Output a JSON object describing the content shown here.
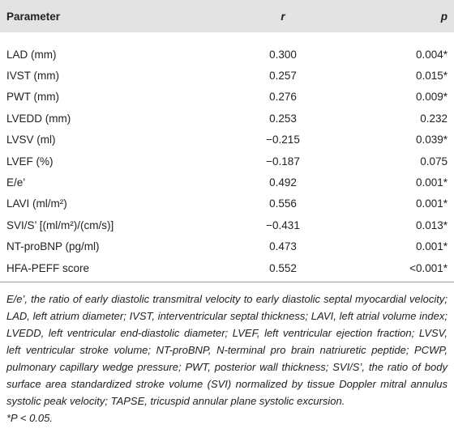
{
  "table": {
    "header": [
      "Parameter",
      "r",
      "p"
    ],
    "rows": [
      [
        "LAD (mm)",
        "0.300",
        "0.004*"
      ],
      [
        "IVST (mm)",
        "0.257",
        "0.015*"
      ],
      [
        "PWT (mm)",
        "0.276",
        "0.009*"
      ],
      [
        "LVEDD (mm)",
        "0.253",
        "0.232"
      ],
      [
        "LVSV (ml)",
        "−0.215",
        "0.039*"
      ],
      [
        "LVEF (%)",
        "−0.187",
        "0.075"
      ],
      [
        "E/e’",
        "0.492",
        "0.001*"
      ],
      [
        "LAVI (ml/m²)",
        "0.556",
        "0.001*"
      ],
      [
        "SVI/S’ [(ml/m²)/(cm/s)]",
        "−0.431",
        "0.013*"
      ],
      [
        "NT-proBNP (pg/ml)",
        "0.473",
        "0.001*"
      ],
      [
        "HFA-PEFF score",
        "0.552",
        "<0.001*"
      ]
    ]
  },
  "footnote": {
    "abbreviations": "E/e’, the ratio of early diastolic transmitral velocity to early diastolic septal myocardial velocity; LAD, left atrium diameter; IVST, interventricular septal thickness; LAVI, left atrial volume index; LVEDD, left ventricular end-diastolic diameter; LVEF, left ventricular ejection fraction; LVSV, left ventricular stroke volume; NT-proBNP, N-terminal pro brain natriuretic peptide; PCWP, pulmonary capillary wedge pressure; PWT, posterior wall thickness; SVI/S’, the ratio of body surface area standardized stroke volume (SVI) normalized by tissue Doppler mitral annulus systolic peak velocity; TAPSE, tricuspid annular plane systolic excursion.",
    "significance": "*P < 0.05."
  }
}
